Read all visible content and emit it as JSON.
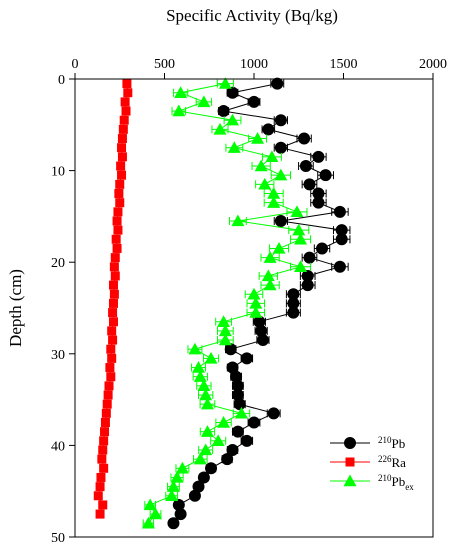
{
  "chart_data": {
    "type": "scatter",
    "xlabel": "Specific Activity (Bq/kg)",
    "ylabel": "Depth (cm)",
    "xlim": [
      0,
      2000
    ],
    "ylim": [
      0,
      50
    ],
    "x_ticks": [
      "0",
      "500",
      "1000",
      "1500",
      "2000"
    ],
    "y_ticks": [
      "0",
      "10",
      "20",
      "30",
      "40",
      "50"
    ],
    "x_axis_position": "top",
    "y_axis_inverted": true,
    "grid": false,
    "legend_position": "bottom-right",
    "series": [
      {
        "label_iso": "210",
        "label_sym": "Pb",
        "label_sub": "",
        "color": "#000000",
        "marker": "circle",
        "points": [
          [
            1130,
            0.5
          ],
          [
            880,
            1.5
          ],
          [
            1000,
            2.5
          ],
          [
            830,
            3.5
          ],
          [
            1150,
            4.5
          ],
          [
            1080,
            5.5
          ],
          [
            1280,
            6.5
          ],
          [
            1150,
            7.5
          ],
          [
            1360,
            8.5
          ],
          [
            1290,
            9.5
          ],
          [
            1400,
            10.5
          ],
          [
            1310,
            11.5
          ],
          [
            1360,
            12.5
          ],
          [
            1360,
            13.5
          ],
          [
            1480,
            14.5
          ],
          [
            1150,
            15.5
          ],
          [
            1490,
            16.5
          ],
          [
            1490,
            17.5
          ],
          [
            1380,
            18.5
          ],
          [
            1310,
            19.5
          ],
          [
            1480,
            20.5
          ],
          [
            1300,
            21.5
          ],
          [
            1300,
            22.5
          ],
          [
            1220,
            23.5
          ],
          [
            1220,
            24.5
          ],
          [
            1220,
            25.5
          ],
          [
            1030,
            26.5
          ],
          [
            1040,
            27.5
          ],
          [
            1050,
            28.5
          ],
          [
            870,
            29.5
          ],
          [
            960,
            30.5
          ],
          [
            880,
            31.5
          ],
          [
            900,
            32.5
          ],
          [
            910,
            33.5
          ],
          [
            910,
            34.5
          ],
          [
            920,
            35.5
          ],
          [
            1110,
            36.5
          ],
          [
            1000,
            37.5
          ],
          [
            910,
            38.5
          ],
          [
            960,
            39.5
          ],
          [
            880,
            40.5
          ],
          [
            850,
            41.5
          ],
          [
            760,
            42.5
          ],
          [
            720,
            43.5
          ],
          [
            690,
            44.5
          ],
          [
            670,
            45.5
          ],
          [
            580,
            46.5
          ],
          [
            590,
            47.5
          ],
          [
            550,
            48.5
          ]
        ],
        "errors": [
          36,
          30,
          33,
          28,
          37,
          35,
          40,
          37,
          43,
          41,
          44,
          41,
          43,
          43,
          46,
          37,
          46,
          46,
          43,
          41,
          46,
          41,
          41,
          39,
          39,
          39,
          34,
          34,
          34,
          29,
          32,
          29,
          30,
          30,
          30,
          31,
          36,
          33,
          30,
          32,
          29,
          28,
          26,
          24,
          23,
          23,
          20,
          20,
          19
        ]
      },
      {
        "label_iso": "226",
        "label_sym": "Ra",
        "label_sub": "",
        "color": "#ff0000",
        "marker": "square",
        "points": [
          [
            290,
            0.5
          ],
          [
            295,
            1.5
          ],
          [
            280,
            2.5
          ],
          [
            285,
            3.5
          ],
          [
            275,
            4.5
          ],
          [
            270,
            5.5
          ],
          [
            265,
            6.5
          ],
          [
            260,
            7.5
          ],
          [
            265,
            8.5
          ],
          [
            255,
            9.5
          ],
          [
            260,
            10.5
          ],
          [
            250,
            11.5
          ],
          [
            245,
            12.5
          ],
          [
            250,
            13.5
          ],
          [
            240,
            14.5
          ],
          [
            235,
            15.5
          ],
          [
            240,
            16.5
          ],
          [
            230,
            17.5
          ],
          [
            235,
            18.5
          ],
          [
            225,
            19.5
          ],
          [
            220,
            20.5
          ],
          [
            225,
            21.5
          ],
          [
            215,
            22.5
          ],
          [
            220,
            23.5
          ],
          [
            215,
            24.5
          ],
          [
            210,
            25.5
          ],
          [
            215,
            26.5
          ],
          [
            205,
            27.5
          ],
          [
            210,
            28.5
          ],
          [
            200,
            29.5
          ],
          [
            205,
            30.5
          ],
          [
            195,
            31.5
          ],
          [
            200,
            32.5
          ],
          [
            190,
            33.5
          ],
          [
            185,
            34.5
          ],
          [
            180,
            35.5
          ],
          [
            175,
            36.5
          ],
          [
            170,
            37.5
          ],
          [
            165,
            38.5
          ],
          [
            160,
            39.5
          ],
          [
            155,
            40.5
          ],
          [
            150,
            41.5
          ],
          [
            160,
            42.5
          ],
          [
            145,
            43.5
          ],
          [
            140,
            44.5
          ],
          [
            130,
            45.5
          ],
          [
            155,
            46.5
          ],
          [
            140,
            47.5
          ]
        ],
        "errors": [
          18,
          18,
          17,
          17,
          17,
          16,
          16,
          16,
          16,
          15,
          16,
          15,
          15,
          15,
          14,
          14,
          14,
          14,
          14,
          14,
          13,
          14,
          13,
          13,
          13,
          13,
          13,
          12,
          13,
          12,
          12,
          12,
          12,
          11,
          11,
          11,
          11,
          10,
          10,
          10,
          9,
          9,
          10,
          9,
          8,
          8,
          9,
          8
        ]
      },
      {
        "label_iso": "210",
        "label_sym": "Pb",
        "label_sub": "ex",
        "color": "#00ff00",
        "marker": "triangle",
        "points": [
          [
            840,
            0.5
          ],
          [
            590,
            1.5
          ],
          [
            720,
            2.5
          ],
          [
            580,
            3.5
          ],
          [
            880,
            4.5
          ],
          [
            810,
            5.5
          ],
          [
            1020,
            6.5
          ],
          [
            890,
            7.5
          ],
          [
            1100,
            8.5
          ],
          [
            1040,
            9.5
          ],
          [
            1150,
            10.5
          ],
          [
            1060,
            11.5
          ],
          [
            1110,
            12.5
          ],
          [
            1110,
            13.5
          ],
          [
            1240,
            14.5
          ],
          [
            910,
            15.5
          ],
          [
            1250,
            16.5
          ],
          [
            1260,
            17.5
          ],
          [
            1140,
            18.5
          ],
          [
            1090,
            19.5
          ],
          [
            1260,
            20.5
          ],
          [
            1080,
            21.5
          ],
          [
            1090,
            22.5
          ],
          [
            1000,
            23.5
          ],
          [
            1010,
            24.5
          ],
          [
            1010,
            25.5
          ],
          [
            830,
            26.5
          ],
          [
            840,
            27.5
          ],
          [
            840,
            28.5
          ],
          [
            670,
            29.5
          ],
          [
            760,
            30.5
          ],
          [
            690,
            31.5
          ],
          [
            700,
            32.5
          ],
          [
            720,
            33.5
          ],
          [
            730,
            34.5
          ],
          [
            740,
            35.5
          ],
          [
            930,
            36.5
          ],
          [
            830,
            37.5
          ],
          [
            740,
            38.5
          ],
          [
            800,
            39.5
          ],
          [
            730,
            40.5
          ],
          [
            700,
            41.5
          ],
          [
            600,
            42.5
          ],
          [
            570,
            43.5
          ],
          [
            550,
            44.5
          ],
          [
            540,
            45.5
          ],
          [
            420,
            46.5
          ],
          [
            450,
            47.5
          ],
          [
            410,
            48.5
          ]
        ],
        "errors": [
          45,
          40,
          43,
          38,
          47,
          45,
          50,
          47,
          53,
          51,
          54,
          51,
          53,
          53,
          56,
          47,
          56,
          56,
          53,
          51,
          56,
          51,
          51,
          49,
          49,
          49,
          44,
          44,
          44,
          39,
          42,
          39,
          40,
          40,
          40,
          41,
          46,
          43,
          40,
          42,
          39,
          38,
          36,
          34,
          33,
          33,
          30,
          30,
          29
        ]
      }
    ]
  }
}
